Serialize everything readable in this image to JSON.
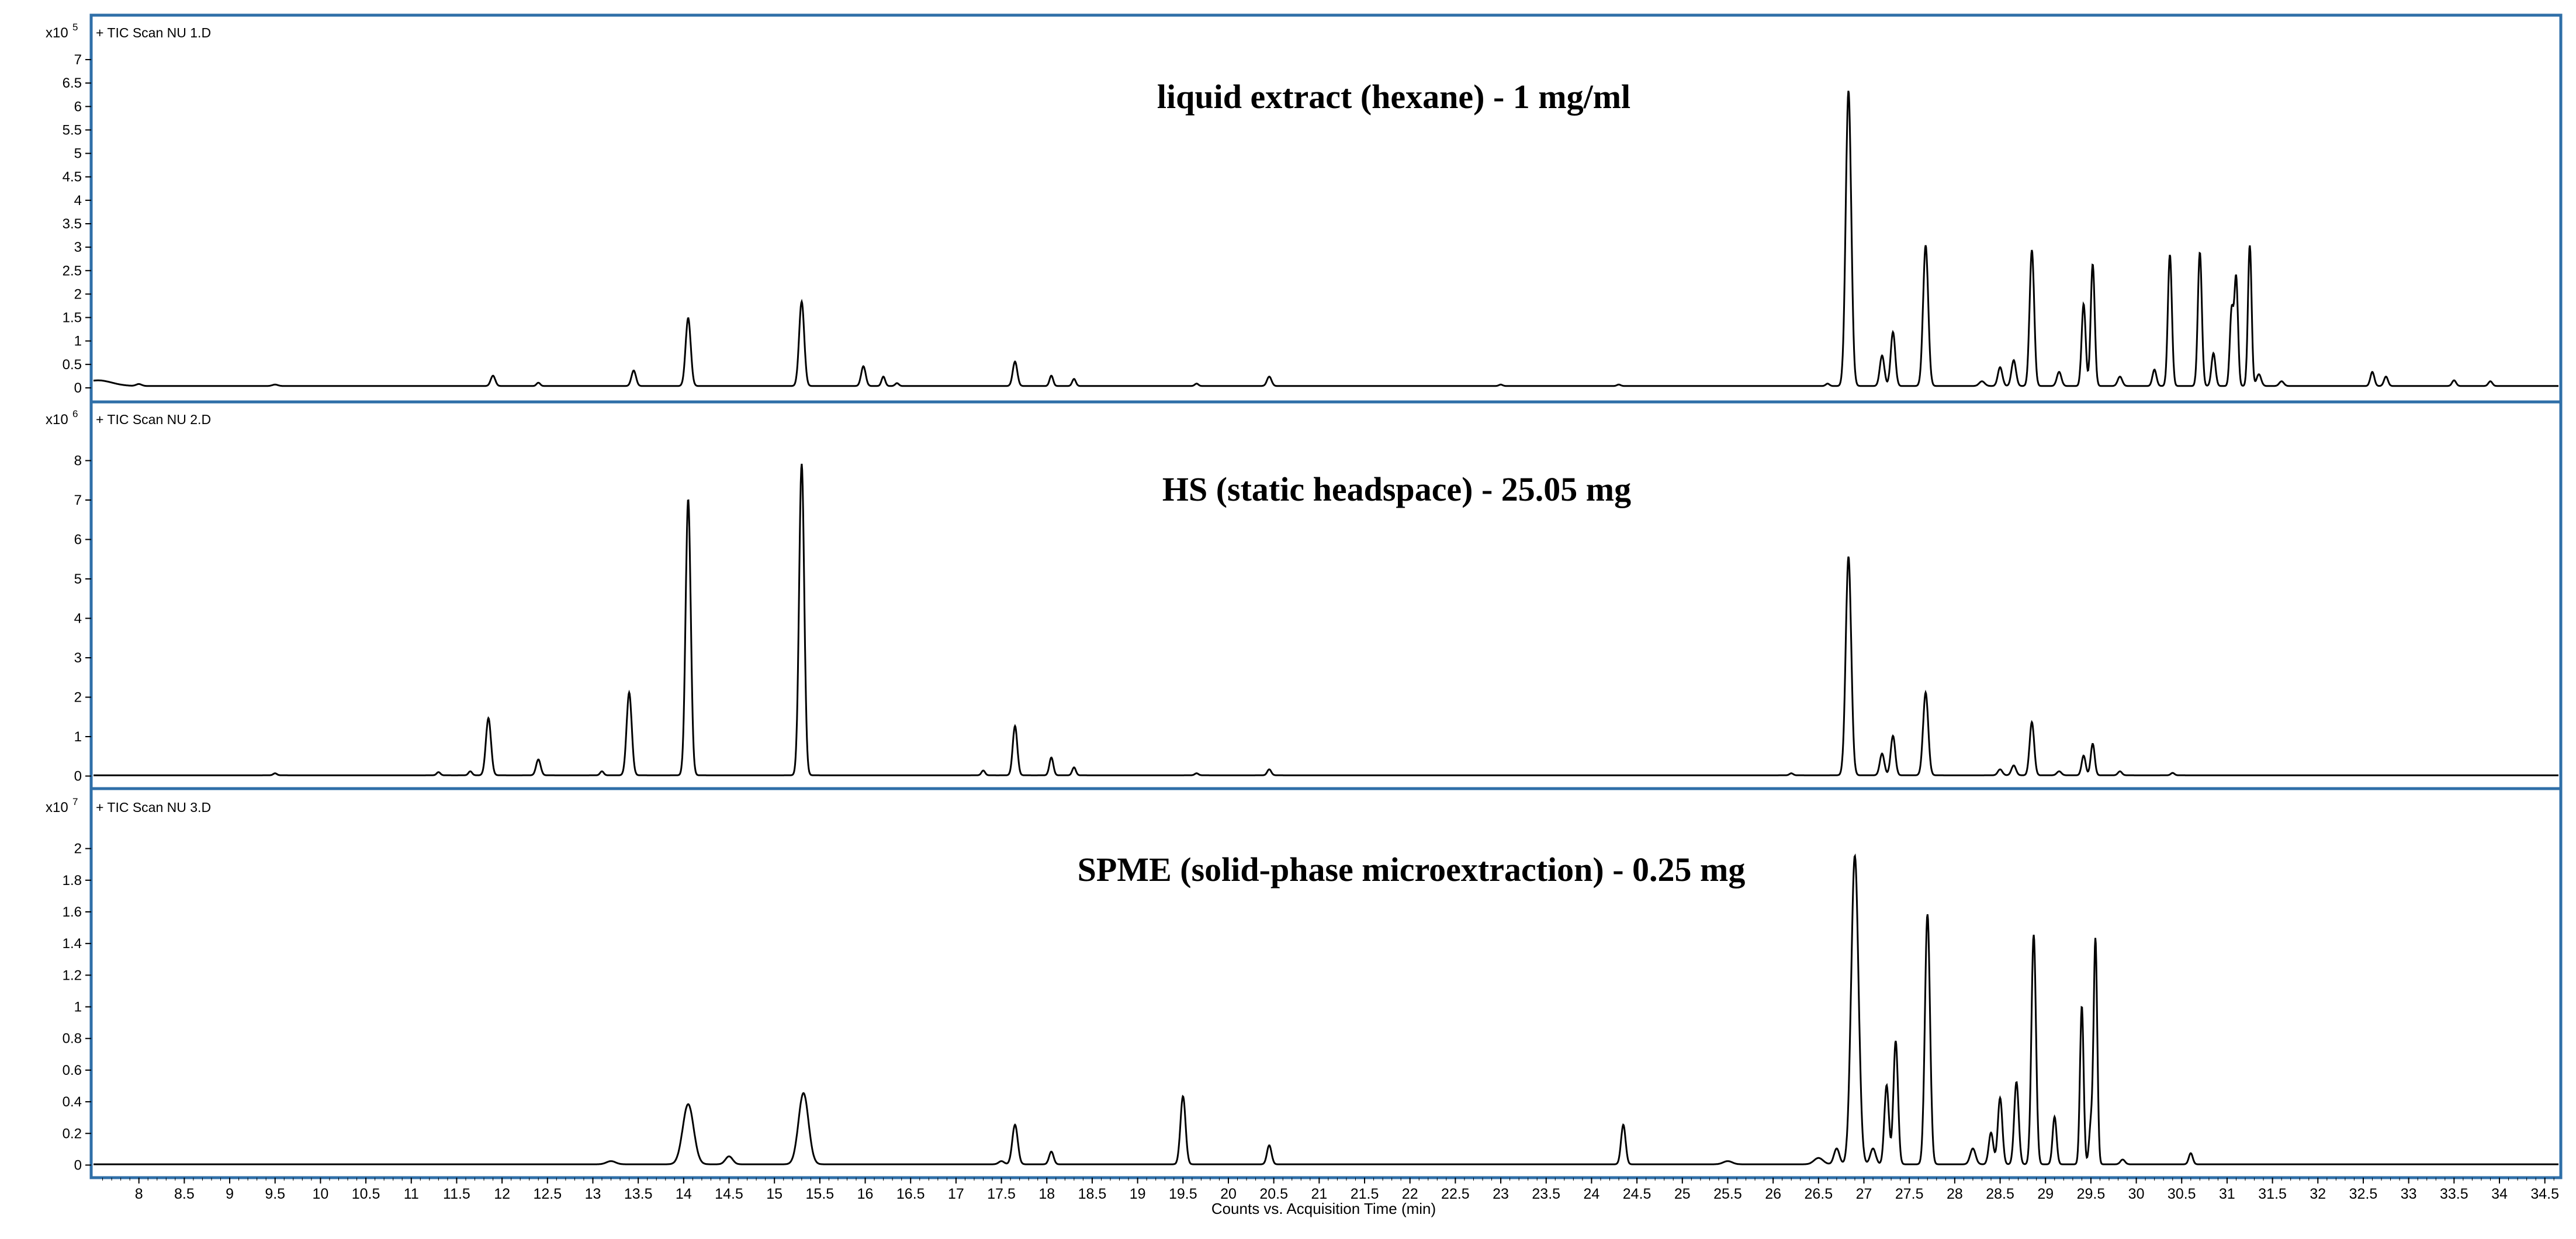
{
  "chart_data": {
    "type": "line",
    "xlabel": "Counts vs. Acquisition Time (min)",
    "xlim": [
      7.5,
      34.65
    ],
    "x_ticks": [
      8,
      8.5,
      9,
      9.5,
      10,
      10.5,
      11,
      11.5,
      12,
      12.5,
      13,
      13.5,
      14,
      14.5,
      15,
      15.5,
      16,
      16.5,
      17,
      17.5,
      18,
      18.5,
      19,
      19.5,
      20,
      20.5,
      21,
      21.5,
      22,
      22.5,
      23,
      23.5,
      24,
      24.5,
      25,
      25.5,
      26,
      26.5,
      27,
      27.5,
      28,
      28.5,
      29,
      29.5,
      30,
      30.5,
      31,
      31.5,
      32,
      32.5,
      33,
      33.5,
      34,
      34.5
    ],
    "grid": false,
    "panels": [
      {
        "label": "+ TIC Scan NU 1.D",
        "multiplier_base": "x10",
        "multiplier_exp": "5",
        "title": "liquid extract (hexane) - 1 mg/ml",
        "ylim": [
          -0.2,
          7.2
        ],
        "y_ticks": [
          0,
          0.5,
          1,
          1.5,
          2,
          2.5,
          3,
          3.5,
          4,
          4.5,
          5,
          5.5,
          6,
          6.5,
          7
        ],
        "baseline": 0.04,
        "line_color": "#000000",
        "peaks": [
          [
            7.55,
            0.12,
            0.15
          ],
          [
            8.0,
            0.04,
            0.03
          ],
          [
            9.5,
            0.03,
            0.03
          ],
          [
            11.9,
            0.22,
            0.025
          ],
          [
            12.4,
            0.07,
            0.02
          ],
          [
            13.45,
            0.33,
            0.025
          ],
          [
            14.05,
            1.45,
            0.028
          ],
          [
            15.3,
            1.8,
            0.028
          ],
          [
            15.98,
            0.42,
            0.025
          ],
          [
            16.2,
            0.2,
            0.02
          ],
          [
            16.35,
            0.06,
            0.02
          ],
          [
            17.65,
            0.52,
            0.025
          ],
          [
            18.05,
            0.22,
            0.02
          ],
          [
            18.3,
            0.15,
            0.02
          ],
          [
            19.65,
            0.05,
            0.02
          ],
          [
            20.45,
            0.2,
            0.025
          ],
          [
            23.0,
            0.03,
            0.02
          ],
          [
            24.3,
            0.03,
            0.02
          ],
          [
            26.6,
            0.05,
            0.02
          ],
          [
            26.83,
            6.3,
            0.03
          ],
          [
            27.2,
            0.65,
            0.025
          ],
          [
            27.32,
            1.15,
            0.025
          ],
          [
            27.68,
            3.0,
            0.028
          ],
          [
            28.3,
            0.1,
            0.03
          ],
          [
            28.5,
            0.4,
            0.025
          ],
          [
            28.65,
            0.55,
            0.025
          ],
          [
            28.85,
            2.9,
            0.025
          ],
          [
            29.15,
            0.3,
            0.025
          ],
          [
            29.42,
            1.75,
            0.022
          ],
          [
            29.52,
            2.6,
            0.022
          ],
          [
            29.82,
            0.2,
            0.025
          ],
          [
            30.2,
            0.35,
            0.022
          ],
          [
            30.37,
            2.8,
            0.022
          ],
          [
            30.7,
            2.85,
            0.022
          ],
          [
            30.85,
            0.7,
            0.022
          ],
          [
            31.05,
            1.6,
            0.02
          ],
          [
            31.1,
            2.3,
            0.02
          ],
          [
            31.25,
            3.0,
            0.02
          ],
          [
            31.35,
            0.25,
            0.025
          ],
          [
            31.6,
            0.1,
            0.025
          ],
          [
            32.6,
            0.3,
            0.022
          ],
          [
            32.75,
            0.2,
            0.022
          ],
          [
            33.5,
            0.12,
            0.022
          ],
          [
            33.9,
            0.1,
            0.022
          ]
        ]
      },
      {
        "label": "+ TIC Scan NU 2.D",
        "multiplier_base": "x10",
        "multiplier_exp": "6",
        "title": "HS (static headspace) - 25.05 mg",
        "ylim": [
          -0.2,
          8.6
        ],
        "y_ticks": [
          0,
          1,
          2,
          3,
          4,
          5,
          6,
          7,
          8
        ],
        "baseline": 0.02,
        "line_color": "#000000",
        "peaks": [
          [
            9.5,
            0.05,
            0.02
          ],
          [
            11.3,
            0.08,
            0.02
          ],
          [
            11.65,
            0.1,
            0.02
          ],
          [
            11.85,
            1.45,
            0.028
          ],
          [
            12.4,
            0.4,
            0.025
          ],
          [
            13.1,
            0.1,
            0.02
          ],
          [
            13.4,
            2.1,
            0.028
          ],
          [
            14.05,
            7.0,
            0.028
          ],
          [
            15.3,
            7.9,
            0.028
          ],
          [
            17.3,
            0.12,
            0.02
          ],
          [
            17.65,
            1.25,
            0.025
          ],
          [
            18.05,
            0.45,
            0.022
          ],
          [
            18.3,
            0.2,
            0.02
          ],
          [
            19.65,
            0.05,
            0.02
          ],
          [
            20.45,
            0.15,
            0.022
          ],
          [
            26.2,
            0.05,
            0.02
          ],
          [
            26.83,
            5.55,
            0.03
          ],
          [
            27.2,
            0.55,
            0.025
          ],
          [
            27.32,
            1.0,
            0.025
          ],
          [
            27.68,
            2.1,
            0.028
          ],
          [
            28.5,
            0.15,
            0.025
          ],
          [
            28.65,
            0.25,
            0.025
          ],
          [
            28.85,
            1.35,
            0.025
          ],
          [
            29.15,
            0.1,
            0.025
          ],
          [
            29.42,
            0.5,
            0.022
          ],
          [
            29.52,
            0.8,
            0.022
          ],
          [
            29.82,
            0.1,
            0.022
          ],
          [
            30.4,
            0.06,
            0.02
          ]
        ]
      },
      {
        "label": "+ TIC Scan NU 3.D",
        "multiplier_base": "x10",
        "multiplier_exp": "7",
        "title": "SPME (solid-phase microextraction) - 0.25 mg",
        "ylim": [
          -0.05,
          2.15
        ],
        "y_ticks": [
          0,
          0.2,
          0.4,
          0.6,
          0.8,
          1,
          1.2,
          1.4,
          1.6,
          1.8,
          2
        ],
        "baseline": 0.005,
        "line_color": "#000000",
        "peaks": [
          [
            13.2,
            0.02,
            0.05
          ],
          [
            14.05,
            0.38,
            0.06
          ],
          [
            14.5,
            0.05,
            0.04
          ],
          [
            15.32,
            0.45,
            0.055
          ],
          [
            17.5,
            0.02,
            0.03
          ],
          [
            17.65,
            0.25,
            0.03
          ],
          [
            18.05,
            0.08,
            0.025
          ],
          [
            19.5,
            0.43,
            0.028
          ],
          [
            20.45,
            0.12,
            0.025
          ],
          [
            24.35,
            0.25,
            0.025
          ],
          [
            25.5,
            0.02,
            0.05
          ],
          [
            26.5,
            0.04,
            0.05
          ],
          [
            26.7,
            0.1,
            0.03
          ],
          [
            26.9,
            1.95,
            0.04
          ],
          [
            27.1,
            0.1,
            0.03
          ],
          [
            27.25,
            0.5,
            0.025
          ],
          [
            27.35,
            0.78,
            0.025
          ],
          [
            27.7,
            1.58,
            0.028
          ],
          [
            28.2,
            0.1,
            0.03
          ],
          [
            28.4,
            0.2,
            0.025
          ],
          [
            28.5,
            0.42,
            0.025
          ],
          [
            28.68,
            0.52,
            0.025
          ],
          [
            28.87,
            1.45,
            0.025
          ],
          [
            29.1,
            0.3,
            0.022
          ],
          [
            29.4,
            1.0,
            0.02
          ],
          [
            29.5,
            0.25,
            0.02
          ],
          [
            29.55,
            1.42,
            0.02
          ],
          [
            29.85,
            0.03,
            0.025
          ],
          [
            30.6,
            0.07,
            0.022
          ]
        ]
      }
    ]
  }
}
